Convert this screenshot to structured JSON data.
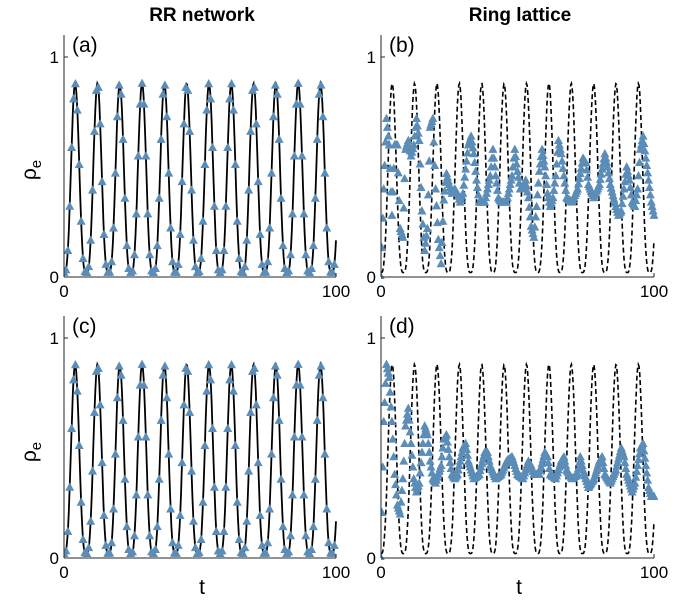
{
  "figure": {
    "column_titles": [
      "RR network",
      "Ring lattice"
    ],
    "xlabel": "t",
    "ylabel_main": "ρ",
    "ylabel_sub": "e"
  },
  "colors": {
    "marker": "#5b8db8",
    "mean_field": "#000000"
  },
  "chart_data": [
    {
      "panel": "(a)",
      "type": "line",
      "column": "RR network",
      "row": 1,
      "xlim": [
        0,
        100
      ],
      "ylim": [
        0,
        1.1
      ],
      "xticks": [
        0,
        100
      ],
      "yticks": [
        0,
        1
      ],
      "series": [
        {
          "style": "solid-black",
          "model": {
            "period": 8.2,
            "peak": 0.88,
            "floor": 0.02,
            "decay": 0,
            "mean": 0.45
          }
        },
        {
          "style": "triangle-markers",
          "model": {
            "period": 8.2,
            "peak": 0.88,
            "floor": 0.02,
            "decay": 0,
            "mean": 0.45
          }
        }
      ]
    },
    {
      "panel": "(b)",
      "type": "line",
      "column": "Ring lattice",
      "row": 1,
      "xlim": [
        0,
        100
      ],
      "ylim": [
        0,
        1.1
      ],
      "xticks": [
        0,
        100
      ],
      "yticks": [
        0,
        1
      ],
      "series": [
        {
          "style": "dashed-black",
          "model": {
            "period": 8.2,
            "peak": 0.88,
            "floor": 0.02,
            "decay": 0,
            "mean": 0.45
          }
        },
        {
          "style": "triangle-markers",
          "points": [
            [
              0,
              0
            ],
            [
              1,
              0.4
            ],
            [
              2,
              0.72
            ],
            [
              3,
              0.6
            ],
            [
              4,
              0.28
            ],
            [
              5,
              0.6
            ],
            [
              6,
              0.6
            ],
            [
              7,
              0.22
            ],
            [
              8,
              0.18
            ],
            [
              9,
              0.58
            ],
            [
              10,
              0.62
            ],
            [
              11,
              0.55
            ],
            [
              12,
              0.6
            ],
            [
              13,
              0.72
            ],
            [
              14,
              0.62
            ],
            [
              15,
              0.3
            ],
            [
              16,
              0.12
            ],
            [
              17,
              0.22
            ],
            [
              18,
              0.68
            ],
            [
              19,
              0.72
            ],
            [
              20,
              0.4
            ],
            [
              21,
              0.17
            ],
            [
              22,
              0.06
            ],
            [
              23,
              0.35
            ],
            [
              24,
              0.47
            ],
            [
              25,
              0.42
            ],
            [
              26,
              0.38
            ],
            [
              27,
              0.4
            ],
            [
              28,
              0.38
            ],
            [
              29,
              0.34
            ],
            [
              30,
              0.38
            ],
            [
              32,
              0.6
            ],
            [
              33,
              0.64
            ],
            [
              34,
              0.56
            ],
            [
              35,
              0.44
            ],
            [
              36,
              0.34
            ],
            [
              38,
              0.34
            ],
            [
              40,
              0.46
            ],
            [
              41,
              0.58
            ],
            [
              42,
              0.46
            ],
            [
              43,
              0.36
            ],
            [
              44,
              0.34
            ],
            [
              46,
              0.34
            ],
            [
              48,
              0.46
            ],
            [
              49,
              0.58
            ],
            [
              50,
              0.48
            ],
            [
              51,
              0.4
            ],
            [
              52,
              0.4
            ],
            [
              53,
              0.44
            ],
            [
              54,
              0.36
            ],
            [
              55,
              0.23
            ],
            [
              56,
              0.18
            ],
            [
              57,
              0.32
            ],
            [
              58,
              0.48
            ],
            [
              59,
              0.58
            ],
            [
              60,
              0.5
            ],
            [
              61,
              0.38
            ],
            [
              62,
              0.32
            ],
            [
              63,
              0.36
            ],
            [
              64,
              0.46
            ],
            [
              65,
              0.62
            ],
            [
              66,
              0.56
            ],
            [
              67,
              0.46
            ],
            [
              68,
              0.36
            ],
            [
              70,
              0.34
            ],
            [
              72,
              0.4
            ],
            [
              74,
              0.54
            ],
            [
              75,
              0.52
            ],
            [
              76,
              0.42
            ],
            [
              78,
              0.36
            ],
            [
              80,
              0.42
            ],
            [
              82,
              0.56
            ],
            [
              83,
              0.5
            ],
            [
              84,
              0.42
            ],
            [
              86,
              0.32
            ],
            [
              87,
              0.28
            ],
            [
              88,
              0.3
            ],
            [
              89,
              0.4
            ],
            [
              90,
              0.5
            ],
            [
              91,
              0.44
            ],
            [
              92,
              0.34
            ],
            [
              93,
              0.32
            ],
            [
              94,
              0.4
            ],
            [
              95,
              0.58
            ],
            [
              96,
              0.64
            ],
            [
              97,
              0.54
            ],
            [
              98,
              0.44
            ],
            [
              99,
              0.34
            ],
            [
              100,
              0.28
            ]
          ]
        }
      ]
    },
    {
      "panel": "(c)",
      "type": "line",
      "column": "RR network",
      "row": 2,
      "xlim": [
        0,
        100
      ],
      "ylim": [
        0,
        1.1
      ],
      "xticks": [
        0,
        100
      ],
      "yticks": [
        0,
        1
      ],
      "series": [
        {
          "style": "solid-black",
          "model": {
            "period": 8.2,
            "peak": 0.88,
            "floor": 0.02,
            "decay": 0,
            "mean": 0.45
          }
        },
        {
          "style": "triangle-markers",
          "model": {
            "period": 8.2,
            "peak": 0.88,
            "floor": 0.02,
            "decay": 0,
            "mean": 0.45
          }
        }
      ]
    },
    {
      "panel": "(d)",
      "type": "line",
      "column": "Ring lattice",
      "row": 2,
      "xlim": [
        0,
        100
      ],
      "ylim": [
        0,
        1.1
      ],
      "xticks": [
        0,
        100
      ],
      "yticks": [
        0,
        1
      ],
      "series": [
        {
          "style": "dashed-black",
          "model": {
            "period": 8.2,
            "peak": 0.88,
            "floor": 0.02,
            "decay": 0,
            "mean": 0.45
          }
        },
        {
          "style": "triangle-markers",
          "points": [
            [
              0,
              0
            ],
            [
              1,
              0.62
            ],
            [
              2,
              0.88
            ],
            [
              3,
              0.82
            ],
            [
              4,
              0.62
            ],
            [
              5,
              0.38
            ],
            [
              6,
              0.24
            ],
            [
              7,
              0.2
            ],
            [
              8,
              0.36
            ],
            [
              9,
              0.6
            ],
            [
              10,
              0.68
            ],
            [
              11,
              0.52
            ],
            [
              12,
              0.36
            ],
            [
              13,
              0.3
            ],
            [
              14,
              0.34
            ],
            [
              15,
              0.48
            ],
            [
              16,
              0.6
            ],
            [
              17,
              0.56
            ],
            [
              18,
              0.44
            ],
            [
              19,
              0.36
            ],
            [
              20,
              0.34
            ],
            [
              22,
              0.42
            ],
            [
              23,
              0.54
            ],
            [
              24,
              0.56
            ],
            [
              25,
              0.46
            ],
            [
              26,
              0.38
            ],
            [
              27,
              0.36
            ],
            [
              28,
              0.38
            ],
            [
              30,
              0.5
            ],
            [
              31,
              0.52
            ],
            [
              32,
              0.44
            ],
            [
              34,
              0.36
            ],
            [
              36,
              0.38
            ],
            [
              38,
              0.48
            ],
            [
              39,
              0.48
            ],
            [
              40,
              0.42
            ],
            [
              42,
              0.36
            ],
            [
              44,
              0.38
            ],
            [
              46,
              0.44
            ],
            [
              48,
              0.46
            ],
            [
              49,
              0.42
            ],
            [
              50,
              0.38
            ],
            [
              52,
              0.36
            ],
            [
              54,
              0.44
            ],
            [
              55,
              0.42
            ],
            [
              56,
              0.38
            ],
            [
              58,
              0.38
            ],
            [
              60,
              0.48
            ],
            [
              61,
              0.46
            ],
            [
              62,
              0.38
            ],
            [
              64,
              0.36
            ],
            [
              66,
              0.44
            ],
            [
              67,
              0.46
            ],
            [
              68,
              0.4
            ],
            [
              70,
              0.36
            ],
            [
              72,
              0.38
            ],
            [
              73,
              0.46
            ],
            [
              74,
              0.4
            ],
            [
              76,
              0.32
            ],
            [
              78,
              0.36
            ],
            [
              80,
              0.44
            ],
            [
              81,
              0.46
            ],
            [
              82,
              0.38
            ],
            [
              84,
              0.34
            ],
            [
              86,
              0.4
            ],
            [
              88,
              0.5
            ],
            [
              89,
              0.46
            ],
            [
              90,
              0.38
            ],
            [
              92,
              0.3
            ],
            [
              93,
              0.34
            ],
            [
              95,
              0.5
            ],
            [
              96,
              0.52
            ],
            [
              97,
              0.42
            ],
            [
              98,
              0.32
            ],
            [
              99,
              0.28
            ],
            [
              100,
              0.28
            ]
          ]
        }
      ]
    }
  ]
}
